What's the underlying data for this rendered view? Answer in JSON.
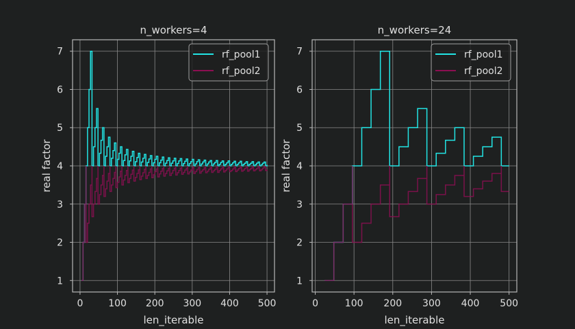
{
  "chart_data": [
    {
      "type": "line",
      "title": "n_workers=4",
      "workers": 4,
      "xlabel": "len_iterable",
      "ylabel": "real factor",
      "xlim": [
        -20,
        520
      ],
      "ylim": [
        0.7,
        7.3
      ],
      "xticks": [
        0,
        100,
        200,
        300,
        400,
        500
      ],
      "yticks": [
        1,
        2,
        3,
        4,
        5,
        6,
        7
      ],
      "grid": true,
      "legend": "top-right",
      "drawstyle": "steps",
      "x_start": 4,
      "x_end": 500,
      "x_step": 4,
      "series": [
        {
          "name": "rf_pool1",
          "color": "#22e5e5",
          "values": [
            1,
            2,
            3,
            4,
            5,
            6,
            7,
            4,
            4.5,
            5,
            5.5,
            4,
            4.33,
            4.67,
            5,
            4,
            4.25,
            4.5,
            4.75,
            4,
            4.2,
            4.4,
            4.6,
            4,
            4.17,
            4.33,
            4.5,
            4,
            4.14,
            4.29,
            4.43,
            4,
            4.13,
            4.25,
            4.38,
            4,
            4.11,
            4.22,
            4.33,
            4,
            4.1,
            4.2,
            4.3,
            4,
            4.09,
            4.18,
            4.27,
            4,
            4.08,
            4.17,
            4.25,
            4,
            4.08,
            4.15,
            4.23,
            4,
            4.07,
            4.14,
            4.21,
            4,
            4.07,
            4.13,
            4.2,
            4,
            4.06,
            4.13,
            4.19,
            4,
            4.06,
            4.12,
            4.18,
            4,
            4.06,
            4.11,
            4.17,
            4,
            4.05,
            4.11,
            4.16,
            4,
            4.05,
            4.1,
            4.15,
            4,
            4.05,
            4.1,
            4.14,
            4,
            4.05,
            4.09,
            4.14,
            4,
            4.04,
            4.09,
            4.13,
            4,
            4.04,
            4.08,
            4.13,
            4,
            4.04,
            4.08,
            4.12,
            4,
            4.04,
            4.08,
            4.12,
            4,
            4.04,
            4.07,
            4.11,
            4,
            4.04,
            4.07,
            4.11,
            4,
            4.03,
            4.07,
            4.1,
            4,
            4.03,
            4.07,
            4.1,
            4,
            4.03
          ]
        },
        {
          "name": "rf_pool2",
          "color": "#8c0f52",
          "values": [
            1,
            2,
            3,
            2,
            2.5,
            3,
            3.5,
            2.67,
            3,
            3.33,
            3.67,
            3,
            3.25,
            3.5,
            3.75,
            3.2,
            3.4,
            3.6,
            3.8,
            3.33,
            3.5,
            3.67,
            3.83,
            3.43,
            3.57,
            3.71,
            3.86,
            3.5,
            3.63,
            3.75,
            3.88,
            3.56,
            3.67,
            3.78,
            3.89,
            3.6,
            3.7,
            3.8,
            3.9,
            3.64,
            3.73,
            3.82,
            3.91,
            3.67,
            3.75,
            3.83,
            3.92,
            3.69,
            3.77,
            3.85,
            3.92,
            3.71,
            3.79,
            3.86,
            3.93,
            3.73,
            3.8,
            3.87,
            3.93,
            3.75,
            3.81,
            3.88,
            3.94,
            3.76,
            3.82,
            3.88,
            3.94,
            3.78,
            3.83,
            3.89,
            3.94,
            3.79,
            3.84,
            3.89,
            3.95,
            3.8,
            3.85,
            3.9,
            3.95,
            3.81,
            3.86,
            3.9,
            3.95,
            3.82,
            3.86,
            3.91,
            3.95,
            3.83,
            3.87,
            3.91,
            3.96,
            3.83,
            3.88,
            3.92,
            3.96,
            3.84,
            3.88,
            3.92,
            3.96,
            3.85,
            3.88,
            3.92,
            3.96,
            3.85,
            3.89,
            3.93,
            3.96,
            3.86,
            3.89,
            3.93,
            3.96,
            3.86,
            3.9,
            3.93,
            3.97,
            3.87,
            3.9,
            3.93,
            3.97,
            3.87,
            3.9,
            3.94,
            3.97,
            3.88,
            3.91
          ]
        }
      ]
    },
    {
      "type": "line",
      "title": "n_workers=24",
      "workers": 24,
      "xlabel": "len_iterable",
      "ylabel": "real factor",
      "xlim": [
        -8,
        520
      ],
      "ylim": [
        0.7,
        7.3
      ],
      "xticks": [
        0,
        100,
        200,
        300,
        400,
        500
      ],
      "yticks": [
        1,
        2,
        3,
        4,
        5,
        6,
        7
      ],
      "grid": true,
      "legend": "top-right",
      "drawstyle": "steps",
      "x_start": 24,
      "x_end": 500,
      "x_step": 24,
      "series": [
        {
          "name": "rf_pool1",
          "color": "#22e5e5",
          "values": [
            1,
            2,
            3,
            4,
            5,
            6,
            7,
            4,
            4.5,
            5,
            5.5,
            4,
            4.33,
            4.67,
            5,
            4,
            4.25,
            4.5,
            4.75,
            4
          ]
        },
        {
          "name": "rf_pool2",
          "color": "#8c0f52",
          "values": [
            1,
            2,
            3,
            2,
            2.5,
            3,
            3.5,
            2.67,
            3,
            3.33,
            3.67,
            3,
            3.25,
            3.5,
            3.75,
            3.2,
            3.4,
            3.6,
            3.8,
            3.33
          ]
        }
      ]
    }
  ]
}
